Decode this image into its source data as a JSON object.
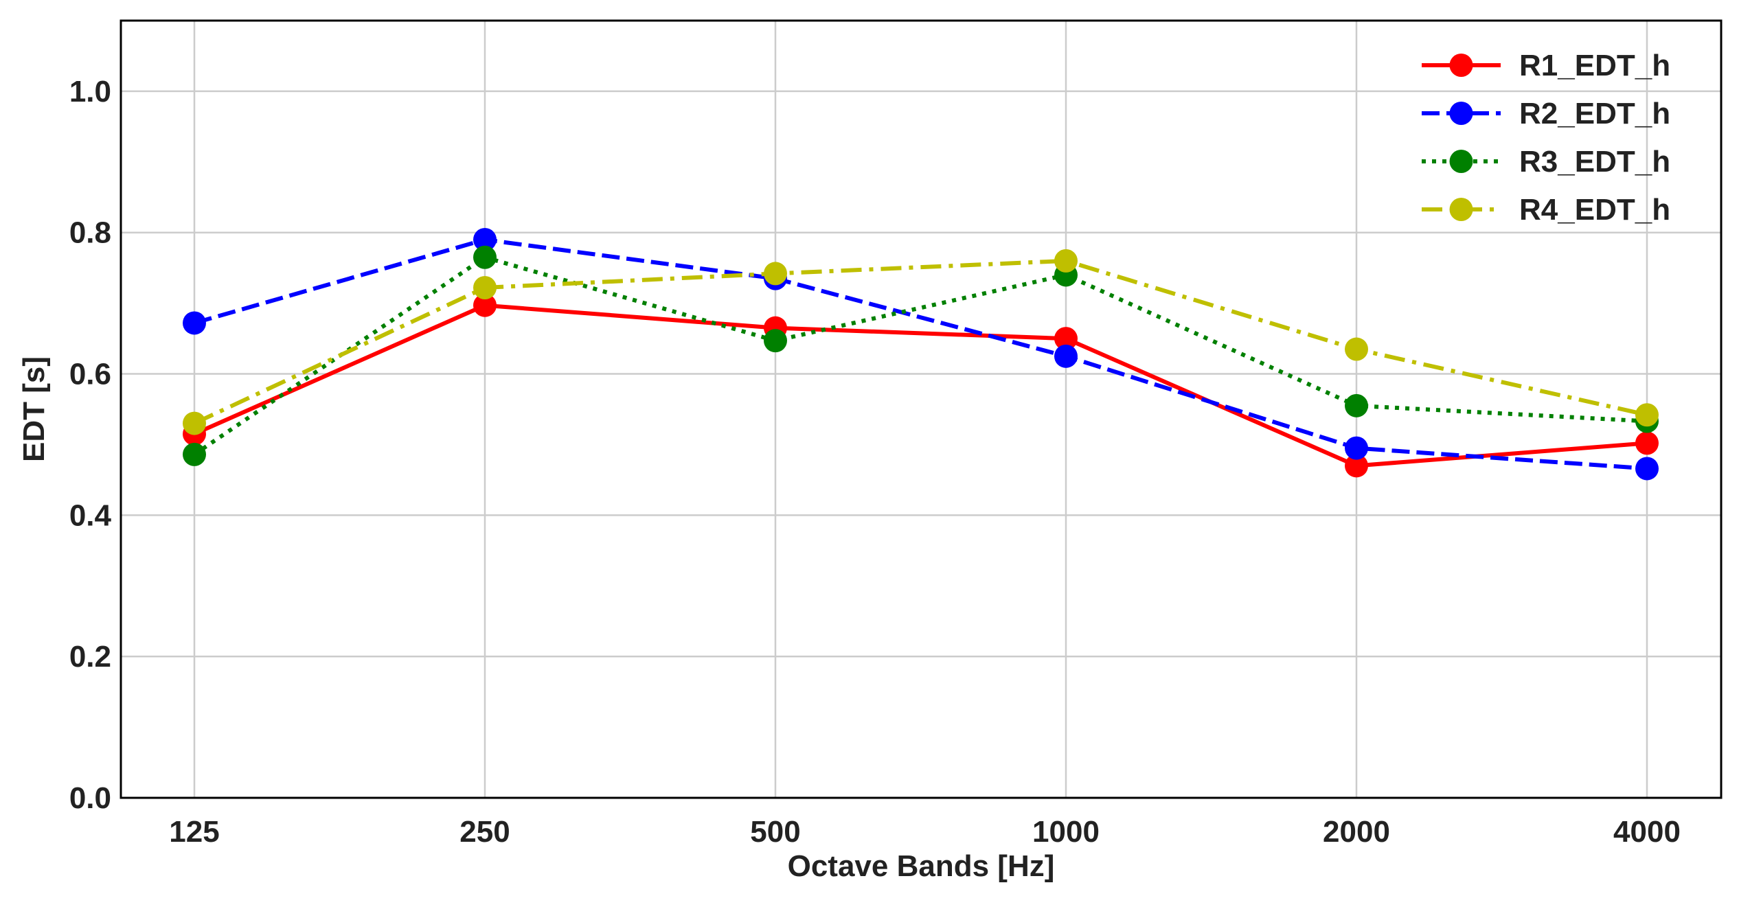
{
  "chart_data": {
    "type": "line",
    "title": "",
    "xlabel": "Octave Bands [Hz]",
    "ylabel": "EDT [s]",
    "categories": [
      "125",
      "250",
      "500",
      "1000",
      "2000",
      "4000"
    ],
    "ylim": [
      0.0,
      1.1
    ],
    "yticks": [
      "0.0",
      "0.2",
      "0.4",
      "0.6",
      "0.8",
      "1.0"
    ],
    "grid": true,
    "legend_position": "top-right",
    "series": [
      {
        "name": "R1_EDT_h",
        "color": "#ff0000",
        "linestyle": "solid",
        "values": [
          0.515,
          0.697,
          0.665,
          0.65,
          0.47,
          0.502
        ]
      },
      {
        "name": "R2_EDT_h",
        "color": "#0000ff",
        "linestyle": "dashed",
        "values": [
          0.672,
          0.79,
          0.735,
          0.625,
          0.495,
          0.466
        ]
      },
      {
        "name": "R3_EDT_h",
        "color": "#008000",
        "linestyle": "dotted",
        "values": [
          0.486,
          0.765,
          0.647,
          0.74,
          0.555,
          0.533
        ]
      },
      {
        "name": "R4_EDT_h",
        "color": "#bfbf00",
        "linestyle": "dashdot",
        "values": [
          0.53,
          0.722,
          0.742,
          0.76,
          0.635,
          0.542
        ]
      }
    ]
  }
}
